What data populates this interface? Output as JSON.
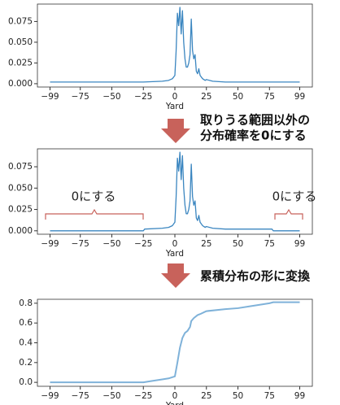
{
  "chart_data": [
    {
      "type": "line",
      "xlabel": "Yard",
      "color": "#3b86c0",
      "x": [
        -99,
        -50,
        -25,
        -10,
        -5,
        -2,
        0,
        1,
        2,
        3,
        4,
        5,
        6,
        7,
        8,
        9,
        10,
        11,
        12,
        13,
        14,
        15,
        16,
        17,
        18,
        19,
        20,
        22,
        24,
        25,
        30,
        40,
        50,
        75,
        99
      ],
      "values": [
        0.002,
        0.002,
        0.002,
        0.003,
        0.004,
        0.006,
        0.01,
        0.04,
        0.085,
        0.07,
        0.092,
        0.06,
        0.088,
        0.05,
        0.03,
        0.02,
        0.02,
        0.025,
        0.035,
        0.078,
        0.04,
        0.03,
        0.035,
        0.015,
        0.012,
        0.018,
        0.01,
        0.006,
        0.004,
        0.005,
        0.003,
        0.002,
        0.002,
        0.002,
        0.002
      ],
      "xlim": [
        -109,
        109
      ],
      "ylim": [
        -0.004,
        0.096
      ],
      "xticks": [
        {
          "value": -99,
          "label": "−99"
        },
        {
          "value": -75,
          "label": "−75"
        },
        {
          "value": -50,
          "label": "−50"
        },
        {
          "value": -25,
          "label": "−25"
        },
        0,
        25,
        50,
        75,
        99
      ],
      "yticks": [
        {
          "value": 0,
          "label": "0.000"
        },
        {
          "value": 0.025,
          "label": "0.025"
        },
        {
          "value": 0.05,
          "label": "0.050"
        },
        {
          "value": 0.075,
          "label": "0.075"
        }
      ]
    },
    {
      "type": "line",
      "xlabel": "Yard",
      "color": "#3b86c0",
      "annotations": [
        "0にする",
        "0にする"
      ],
      "x": [
        -99,
        -50,
        -25,
        -24,
        -10,
        -5,
        -2,
        0,
        1,
        2,
        3,
        4,
        5,
        6,
        7,
        8,
        9,
        10,
        11,
        12,
        13,
        14,
        15,
        16,
        17,
        18,
        19,
        20,
        22,
        24,
        25,
        30,
        40,
        50,
        77,
        78,
        99
      ],
      "values": [
        0,
        0,
        0,
        0.002,
        0.003,
        0.004,
        0.006,
        0.01,
        0.04,
        0.085,
        0.07,
        0.092,
        0.06,
        0.088,
        0.05,
        0.03,
        0.02,
        0.02,
        0.025,
        0.035,
        0.078,
        0.04,
        0.03,
        0.035,
        0.015,
        0.012,
        0.018,
        0.01,
        0.006,
        0.004,
        0.005,
        0.003,
        0.002,
        0.002,
        0.002,
        0,
        0
      ],
      "xlim": [
        -109,
        109
      ],
      "ylim": [
        -0.004,
        0.096
      ],
      "xticks": [
        {
          "value": -99,
          "label": "−99"
        },
        {
          "value": -75,
          "label": "−75"
        },
        {
          "value": -50,
          "label": "−50"
        },
        {
          "value": -25,
          "label": "−25"
        },
        0,
        25,
        50,
        75,
        99
      ],
      "yticks": [
        {
          "value": 0,
          "label": "0.000"
        },
        {
          "value": 0.025,
          "label": "0.025"
        },
        {
          "value": 0.05,
          "label": "0.050"
        },
        {
          "value": 0.075,
          "label": "0.075"
        }
      ]
    },
    {
      "type": "line",
      "xlabel": "Yard",
      "color": "#7fb2d9",
      "x": [
        -99,
        -25,
        -20,
        -10,
        -5,
        0,
        2,
        4,
        6,
        8,
        10,
        12,
        13,
        15,
        18,
        20,
        25,
        40,
        50,
        60,
        75,
        78,
        99
      ],
      "values": [
        0,
        0,
        0.01,
        0.03,
        0.04,
        0.06,
        0.2,
        0.35,
        0.45,
        0.5,
        0.52,
        0.56,
        0.62,
        0.65,
        0.68,
        0.69,
        0.72,
        0.74,
        0.75,
        0.77,
        0.8,
        0.81,
        0.81
      ],
      "xlim": [
        -109,
        109
      ],
      "ylim": [
        -0.04,
        0.84
      ],
      "xticks": [
        {
          "value": -99,
          "label": "−99"
        },
        {
          "value": -75,
          "label": "−75"
        },
        {
          "value": -50,
          "label": "−50"
        },
        {
          "value": -25,
          "label": "−25"
        },
        0,
        25,
        50,
        75,
        99
      ],
      "yticks": [
        {
          "value": 0,
          "label": "0.0"
        },
        {
          "value": 0.2,
          "label": "0.2"
        },
        {
          "value": 0.4,
          "label": "0.4"
        },
        {
          "value": 0.6,
          "label": "0.6"
        },
        {
          "value": 0.8,
          "label": "0.8"
        }
      ]
    }
  ],
  "steps": [
    [
      "取りうる範囲以外の",
      "分布確率を0にする"
    ],
    [
      "累積分布の形に変換"
    ]
  ]
}
